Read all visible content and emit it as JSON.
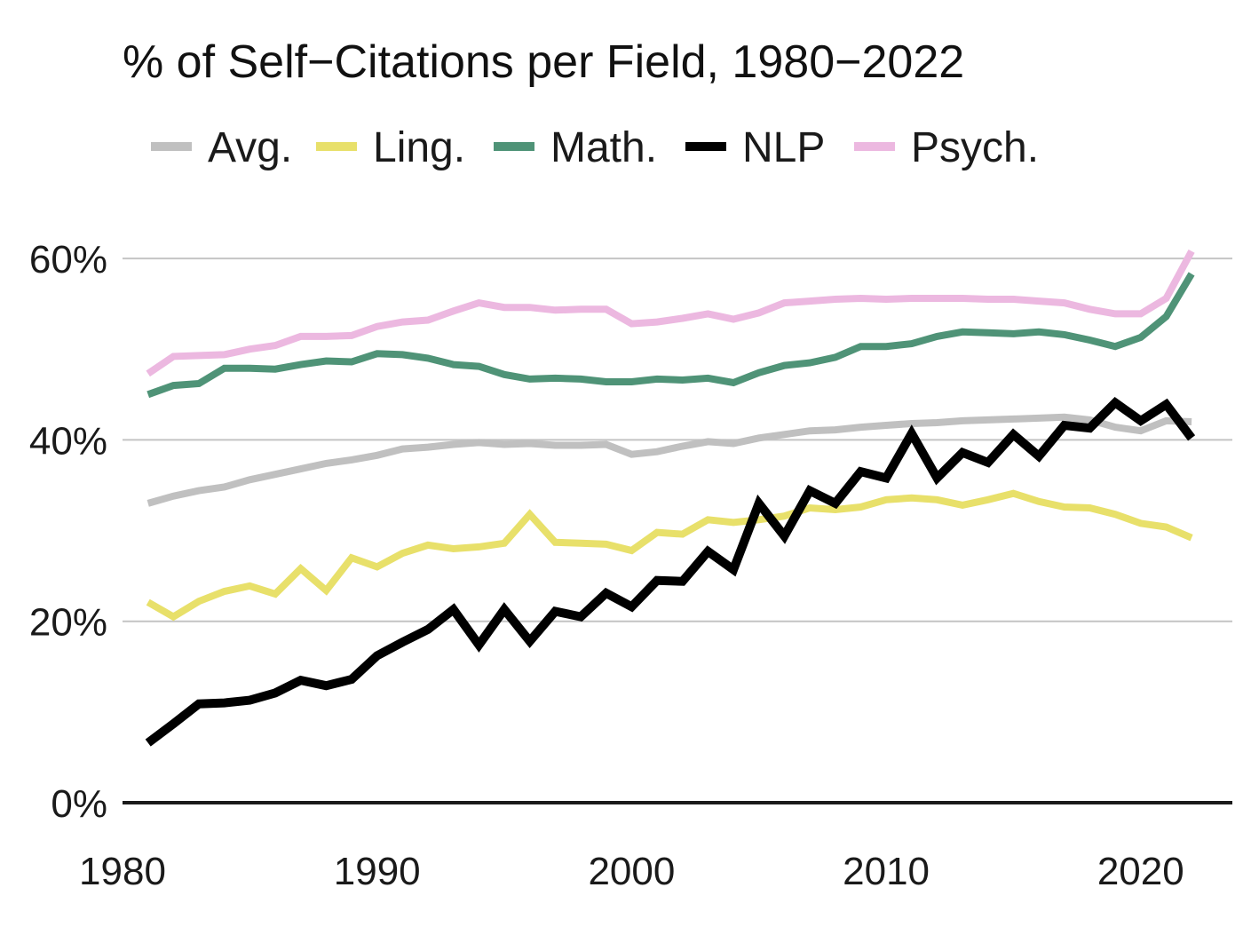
{
  "chart_data": {
    "type": "line",
    "title": "% of Self−Citations per Field, 1980−2022",
    "xlabel": "",
    "ylabel": "",
    "x": [
      1981,
      1982,
      1983,
      1984,
      1985,
      1986,
      1987,
      1988,
      1989,
      1990,
      1991,
      1992,
      1993,
      1994,
      1995,
      1996,
      1997,
      1998,
      1999,
      2000,
      2001,
      2002,
      2003,
      2004,
      2005,
      2006,
      2007,
      2008,
      2009,
      2010,
      2011,
      2012,
      2013,
      2014,
      2015,
      2016,
      2017,
      2018,
      2019,
      2020,
      2021,
      2022
    ],
    "xlim": [
      1980,
      2023.6
    ],
    "ylim": [
      0,
      65
    ],
    "x_ticks": [
      1980,
      1990,
      2000,
      2010,
      2020
    ],
    "x_tick_labels": [
      "1980",
      "1990",
      "2000",
      "2010",
      "2020"
    ],
    "y_ticks": [
      0,
      20,
      40,
      60
    ],
    "y_tick_labels": [
      "0%",
      "20%",
      "40%",
      "60%"
    ],
    "grid": true,
    "legend_position": "top",
    "series": [
      {
        "name": "Avg.",
        "color": "#c0c0c0",
        "values": [
          33.0,
          33.8,
          34.4,
          34.8,
          35.6,
          36.2,
          36.8,
          37.4,
          37.8,
          38.3,
          39.0,
          39.2,
          39.5,
          39.7,
          39.5,
          39.6,
          39.4,
          39.4,
          39.5,
          38.4,
          38.7,
          39.3,
          39.8,
          39.6,
          40.2,
          40.6,
          41.0,
          41.1,
          41.4,
          41.6,
          41.8,
          41.9,
          42.1,
          42.2,
          42.3,
          42.4,
          42.5,
          42.2,
          41.4,
          41.0,
          42.1,
          42.0
        ]
      },
      {
        "name": "Ling.",
        "color": "#e8e06a",
        "values": [
          22.1,
          20.5,
          22.2,
          23.3,
          23.9,
          23.0,
          25.8,
          23.4,
          27.0,
          26.0,
          27.5,
          28.4,
          28.0,
          28.2,
          28.6,
          31.8,
          28.7,
          28.6,
          28.5,
          27.8,
          29.8,
          29.6,
          31.2,
          30.9,
          31.2,
          31.6,
          32.5,
          32.3,
          32.6,
          33.4,
          33.6,
          33.4,
          32.8,
          33.4,
          34.1,
          33.2,
          32.6,
          32.5,
          31.8,
          30.8,
          30.4,
          29.2
        ]
      },
      {
        "name": "Math.",
        "color": "#4f9377",
        "values": [
          45.0,
          46.0,
          46.2,
          47.9,
          47.9,
          47.8,
          48.3,
          48.7,
          48.6,
          49.5,
          49.4,
          49.0,
          48.3,
          48.1,
          47.2,
          46.7,
          46.8,
          46.7,
          46.4,
          46.4,
          46.7,
          46.6,
          46.8,
          46.3,
          47.4,
          48.2,
          48.5,
          49.1,
          50.3,
          50.3,
          50.6,
          51.4,
          51.9,
          51.8,
          51.7,
          51.9,
          51.6,
          51.0,
          50.3,
          51.3,
          53.6,
          58.3
        ]
      },
      {
        "name": "NLP",
        "color": "#000000",
        "values": [
          6.6,
          8.7,
          10.9,
          11.0,
          11.3,
          12.1,
          13.5,
          12.9,
          13.6,
          16.2,
          17.7,
          19.1,
          21.3,
          17.4,
          21.3,
          17.8,
          21.1,
          20.5,
          23.1,
          21.6,
          24.5,
          24.4,
          27.7,
          25.7,
          33.0,
          29.4,
          34.4,
          33.0,
          36.5,
          35.8,
          40.7,
          35.8,
          38.6,
          37.5,
          40.6,
          38.2,
          41.6,
          41.3,
          44.1,
          42.1,
          43.9,
          40.2
        ]
      },
      {
        "name": "Psych.",
        "color": "#ecb8e0",
        "values": [
          47.3,
          49.2,
          49.3,
          49.4,
          50.0,
          50.4,
          51.4,
          51.4,
          51.5,
          52.5,
          53.0,
          53.2,
          54.2,
          55.1,
          54.6,
          54.6,
          54.3,
          54.4,
          54.4,
          52.8,
          53.0,
          53.4,
          53.9,
          53.3,
          54.0,
          55.1,
          55.3,
          55.5,
          55.6,
          55.5,
          55.6,
          55.6,
          55.6,
          55.5,
          55.5,
          55.3,
          55.1,
          54.4,
          53.9,
          53.9,
          55.6,
          60.8
        ]
      }
    ]
  }
}
